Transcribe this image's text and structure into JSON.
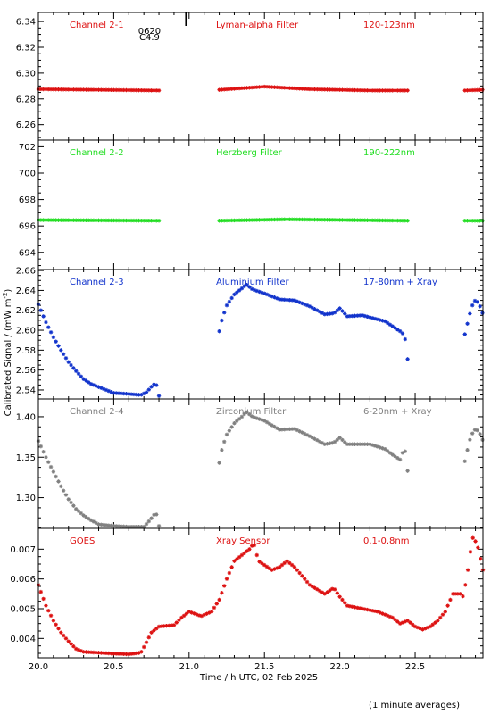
{
  "figure": {
    "xlabel": "Time / h UTC, 02 Feb 2025",
    "ylabel": "Calibrated Signal / (mW m",
    "ylabel_sup": "-2",
    "ylabel_end": ")",
    "footnote": "(1 minute averages)",
    "event_marker": {
      "x": 20.98,
      "label_top": "0620",
      "label_bottom": "C4.9"
    }
  },
  "chart_data": [
    {
      "type": "scatter",
      "panel": "channel-2-1",
      "header": {
        "left": "Channel 2-1",
        "middle": "Lyman-alpha Filter",
        "right": "120-123nm"
      },
      "color": "#dd1111",
      "xlim": [
        20.0,
        22.95
      ],
      "ylim": [
        6.248,
        6.347
      ],
      "yticks": [
        6.26,
        6.28,
        6.3,
        6.32,
        6.34
      ],
      "ytick_labels": [
        "6.26",
        "6.28",
        "6.30",
        "6.32",
        "6.34"
      ],
      "segments": [
        {
          "x_start": 20.0,
          "x_end": 20.8,
          "knots": [
            [
              20.0,
              6.2875
            ],
            [
              20.4,
              6.287
            ],
            [
              20.8,
              6.2865
            ]
          ]
        },
        {
          "x_start": 21.2,
          "x_end": 22.45,
          "knots": [
            [
              21.2,
              6.287
            ],
            [
              21.5,
              6.2895
            ],
            [
              21.8,
              6.2875
            ],
            [
              22.2,
              6.2865
            ],
            [
              22.45,
              6.2865
            ]
          ]
        },
        {
          "x_start": 22.83,
          "x_end": 22.95,
          "knots": [
            [
              22.83,
              6.2865
            ],
            [
              22.95,
              6.287
            ]
          ]
        }
      ]
    },
    {
      "type": "scatter",
      "panel": "channel-2-2",
      "header": {
        "left": "Channel 2-2",
        "middle": "Herzberg Filter",
        "right": "190-222nm"
      },
      "color": "#22dd22",
      "xlim": [
        20.0,
        22.95
      ],
      "ylim": [
        692.7,
        702.5
      ],
      "yticks": [
        694,
        696,
        698,
        700,
        702
      ],
      "ytick_labels": [
        "694",
        "696",
        "698",
        "700",
        "702"
      ],
      "segments": [
        {
          "x_start": 20.0,
          "x_end": 20.8,
          "knots": [
            [
              20.0,
              696.45
            ],
            [
              20.8,
              696.4
            ]
          ]
        },
        {
          "x_start": 21.2,
          "x_end": 22.45,
          "knots": [
            [
              21.2,
              696.4
            ],
            [
              21.65,
              696.5
            ],
            [
              22.45,
              696.4
            ]
          ]
        },
        {
          "x_start": 22.83,
          "x_end": 22.95,
          "knots": [
            [
              22.83,
              696.4
            ],
            [
              22.95,
              696.4
            ]
          ]
        }
      ]
    },
    {
      "type": "scatter",
      "panel": "channel-2-3",
      "header": {
        "left": "Channel 2-3",
        "middle": "Aluminium Filter",
        "right": "17-80nm + Xray"
      },
      "color": "#1133cc",
      "xlim": [
        20.0,
        22.95
      ],
      "ylim": [
        2.531,
        2.661
      ],
      "yticks": [
        2.54,
        2.56,
        2.58,
        2.6,
        2.62,
        2.64,
        2.66
      ],
      "ytick_labels": [
        "2.54",
        "2.56",
        "2.58",
        "2.60",
        "2.62",
        "2.64",
        "2.66"
      ],
      "segments": [
        {
          "x_start": 20.0,
          "x_end": 20.8,
          "knots": [
            [
              20.0,
              2.626
            ],
            [
              20.05,
              2.608
            ],
            [
              20.1,
              2.593
            ],
            [
              20.15,
              2.58
            ],
            [
              20.2,
              2.568
            ],
            [
              20.25,
              2.559
            ],
            [
              20.3,
              2.551
            ],
            [
              20.35,
              2.546
            ],
            [
              20.4,
              2.543
            ],
            [
              20.45,
              2.54
            ],
            [
              20.5,
              2.537
            ],
            [
              20.6,
              2.536
            ],
            [
              20.68,
              2.535
            ],
            [
              20.72,
              2.538
            ],
            [
              20.76,
              2.545
            ],
            [
              20.78,
              2.547
            ],
            [
              20.8,
              2.534
            ]
          ]
        },
        {
          "x_start": 21.2,
          "x_end": 22.45,
          "knots": [
            [
              21.2,
              2.599
            ],
            [
              21.22,
              2.612
            ],
            [
              21.25,
              2.625
            ],
            [
              21.3,
              2.636
            ],
            [
              21.35,
              2.642
            ],
            [
              21.38,
              2.646
            ],
            [
              21.42,
              2.641
            ],
            [
              21.5,
              2.637
            ],
            [
              21.6,
              2.631
            ],
            [
              21.7,
              2.63
            ],
            [
              21.8,
              2.624
            ],
            [
              21.9,
              2.616
            ],
            [
              21.96,
              2.617
            ],
            [
              22.0,
              2.622
            ],
            [
              22.05,
              2.614
            ],
            [
              22.15,
              2.615
            ],
            [
              22.2,
              2.613
            ],
            [
              22.3,
              2.609
            ],
            [
              22.35,
              2.604
            ],
            [
              22.4,
              2.599
            ],
            [
              22.43,
              2.595
            ],
            [
              22.45,
              2.571
            ]
          ]
        },
        {
          "x_start": 22.83,
          "x_end": 22.95,
          "knots": [
            [
              22.83,
              2.596
            ],
            [
              22.86,
              2.615
            ],
            [
              22.89,
              2.63
            ],
            [
              22.92,
              2.628
            ],
            [
              22.95,
              2.616
            ]
          ]
        }
      ]
    },
    {
      "type": "scatter",
      "panel": "channel-2-4",
      "header": {
        "left": "Channel 2-4",
        "middle": "Zirconium Filter",
        "right": "6-20nm + Xray"
      },
      "color": "#808080",
      "xlim": [
        20.0,
        22.95
      ],
      "ylim": [
        1.262,
        1.422
      ],
      "yticks": [
        1.3,
        1.35,
        1.4
      ],
      "ytick_labels": [
        "1.30",
        "1.35",
        "1.40"
      ],
      "segments": [
        {
          "x_start": 20.0,
          "x_end": 20.8,
          "knots": [
            [
              20.0,
              1.37
            ],
            [
              20.05,
              1.35
            ],
            [
              20.1,
              1.332
            ],
            [
              20.15,
              1.314
            ],
            [
              20.2,
              1.298
            ],
            [
              20.25,
              1.286
            ],
            [
              20.3,
              1.278
            ],
            [
              20.35,
              1.272
            ],
            [
              20.4,
              1.267
            ],
            [
              20.5,
              1.265
            ],
            [
              20.6,
              1.264
            ],
            [
              20.7,
              1.264
            ],
            [
              20.74,
              1.272
            ],
            [
              20.78,
              1.282
            ],
            [
              20.8,
              1.265
            ]
          ]
        },
        {
          "x_start": 21.2,
          "x_end": 22.45,
          "knots": [
            [
              21.2,
              1.343
            ],
            [
              21.22,
              1.362
            ],
            [
              21.25,
              1.378
            ],
            [
              21.3,
              1.392
            ],
            [
              21.35,
              1.4
            ],
            [
              21.38,
              1.406
            ],
            [
              21.42,
              1.4
            ],
            [
              21.5,
              1.395
            ],
            [
              21.6,
              1.384
            ],
            [
              21.7,
              1.385
            ],
            [
              21.8,
              1.376
            ],
            [
              21.9,
              1.366
            ],
            [
              21.96,
              1.368
            ],
            [
              22.0,
              1.374
            ],
            [
              22.05,
              1.366
            ],
            [
              22.15,
              1.366
            ],
            [
              22.2,
              1.366
            ],
            [
              22.3,
              1.36
            ],
            [
              22.35,
              1.353
            ],
            [
              22.4,
              1.347
            ],
            [
              22.43,
              1.362
            ],
            [
              22.45,
              1.333
            ]
          ]
        },
        {
          "x_start": 22.83,
          "x_end": 22.95,
          "knots": [
            [
              22.83,
              1.345
            ],
            [
              22.86,
              1.37
            ],
            [
              22.89,
              1.384
            ],
            [
              22.92,
              1.383
            ],
            [
              22.95,
              1.37
            ]
          ]
        }
      ]
    },
    {
      "type": "scatter",
      "panel": "goes",
      "header": {
        "left": "GOES",
        "middle": "Xray Sensor",
        "right": "0.1-0.8nm"
      },
      "color": "#dd1111",
      "xlim": [
        20.0,
        22.95
      ],
      "ylim": [
        0.00335,
        0.0077
      ],
      "yticks": [
        0.004,
        0.005,
        0.006,
        0.007
      ],
      "ytick_labels": [
        "0.004",
        "0.005",
        "0.006",
        "0.007"
      ],
      "segments": [
        {
          "x_start": 20.0,
          "x_end": 22.95,
          "knots": [
            [
              20.0,
              0.0058
            ],
            [
              20.05,
              0.0051
            ],
            [
              20.1,
              0.0046
            ],
            [
              20.15,
              0.0042
            ],
            [
              20.2,
              0.0039
            ],
            [
              20.25,
              0.00365
            ],
            [
              20.3,
              0.00355
            ],
            [
              20.4,
              0.00352
            ],
            [
              20.5,
              0.00349
            ],
            [
              20.6,
              0.00347
            ],
            [
              20.68,
              0.00352
            ],
            [
              20.72,
              0.0039
            ],
            [
              20.75,
              0.0042
            ],
            [
              20.8,
              0.0044
            ],
            [
              20.9,
              0.00445
            ],
            [
              20.95,
              0.0047
            ],
            [
              21.0,
              0.0049
            ],
            [
              21.08,
              0.00475
            ],
            [
              21.15,
              0.0049
            ],
            [
              21.2,
              0.0053
            ],
            [
              21.25,
              0.006
            ],
            [
              21.3,
              0.0066
            ],
            [
              21.35,
              0.0068
            ],
            [
              21.4,
              0.007
            ],
            [
              21.43,
              0.0072
            ],
            [
              21.46,
              0.0066
            ],
            [
              21.55,
              0.0063
            ],
            [
              21.6,
              0.0064
            ],
            [
              21.65,
              0.0066
            ],
            [
              21.7,
              0.0064
            ],
            [
              21.8,
              0.0058
            ],
            [
              21.9,
              0.0055
            ],
            [
              21.96,
              0.0057
            ],
            [
              22.0,
              0.0054
            ],
            [
              22.05,
              0.0051
            ],
            [
              22.15,
              0.005
            ],
            [
              22.25,
              0.0049
            ],
            [
              22.35,
              0.0047
            ],
            [
              22.4,
              0.0045
            ],
            [
              22.45,
              0.0046
            ],
            [
              22.5,
              0.0044
            ],
            [
              22.55,
              0.0043
            ],
            [
              22.6,
              0.0044
            ],
            [
              22.65,
              0.0046
            ],
            [
              22.7,
              0.0049
            ],
            [
              22.75,
              0.0055
            ],
            [
              22.8,
              0.0055
            ],
            [
              22.82,
              0.0054
            ],
            [
              22.85,
              0.0063
            ],
            [
              22.88,
              0.0074
            ],
            [
              22.91,
              0.0072
            ],
            [
              22.95,
              0.0063
            ]
          ]
        }
      ]
    }
  ]
}
